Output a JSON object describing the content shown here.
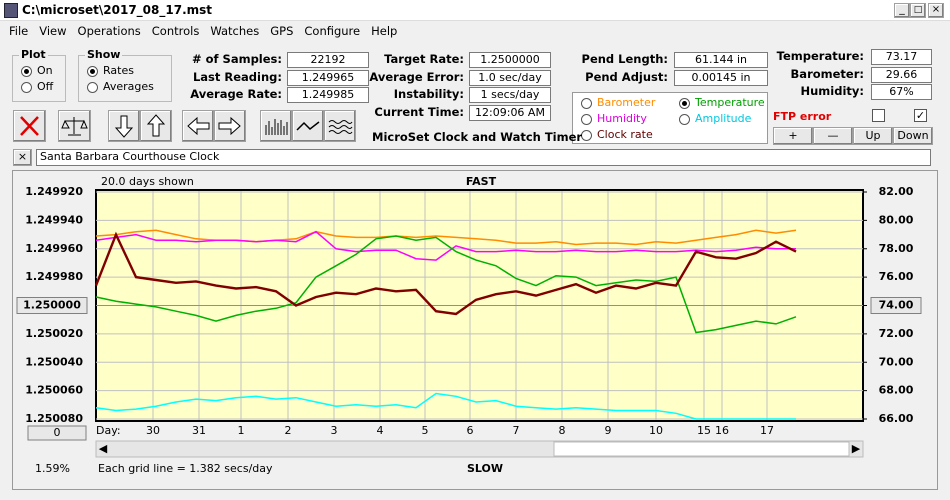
{
  "window": {
    "title": "C:\\microset\\2017_08_17.mst"
  },
  "menu": [
    "File",
    "View",
    "Operations",
    "Controls",
    "Watches",
    "GPS",
    "Configure",
    "Help"
  ],
  "plot_group": {
    "title": "Plot",
    "options": [
      "On",
      "Off"
    ],
    "selected": 0
  },
  "show_group": {
    "title": "Show",
    "options": [
      "Rates",
      "Averages"
    ],
    "selected": 0
  },
  "stats": [
    {
      "label": "# of Samples:",
      "value": "22192"
    },
    {
      "label": "Last Reading:",
      "value": "1.249965"
    },
    {
      "label": "Average Rate:",
      "value": "1.249985"
    }
  ],
  "rates": [
    {
      "label": "Target Rate:",
      "value": "1.2500000"
    },
    {
      "label": "Average Error:",
      "value": "1.0 sec/day"
    },
    {
      "label": "Instability:",
      "value": "1 secs/day"
    },
    {
      "label": "Current Time:",
      "value": "12:09:06 AM"
    }
  ],
  "pendulum": [
    {
      "label": "Pend Length:",
      "value": "61.144 in"
    },
    {
      "label": "Pend Adjust:",
      "value": "0.00145 in"
    }
  ],
  "sensor_select": {
    "options": [
      {
        "label": "Barometer",
        "color": "#ff8c00"
      },
      {
        "label": "Temperature",
        "color": "#00a000"
      },
      {
        "label": "Humidity",
        "color": "#e000e0"
      },
      {
        "label": "Amplitude",
        "color": "#00c8e0"
      },
      {
        "label": "Clock rate",
        "color": "#600000"
      }
    ],
    "selected": 1
  },
  "environment": [
    {
      "label": "Temperature:",
      "value": "73.17"
    },
    {
      "label": "Barometer:",
      "value": "29.66"
    },
    {
      "label": "Humidity:",
      "value": "67%"
    }
  ],
  "ftp_error": "FTP error",
  "buttons": [
    "+",
    "—",
    "Up",
    "Down"
  ],
  "app_name": "MicroSet Clock and Watch Timer",
  "clock_name": "Santa Barbara Courthouse Clock",
  "chart": {
    "days_shown": "20.0 days shown",
    "top_label": "FAST",
    "bottom_label": "SLOW",
    "grid_note": "Each grid line = 1.382 secs/day",
    "percent": "1.59%",
    "offset_button": "0",
    "day_prefix": "Day:",
    "days": [
      "30",
      "31",
      "1",
      "2",
      "3",
      "4",
      "5",
      "6",
      "7",
      "8",
      "9",
      "10",
      "15",
      "16",
      "17"
    ],
    "ylim": [
      1.24992,
      1.25008
    ],
    "yticks": [
      {
        "value": 1.24992,
        "label": "1.249920"
      },
      {
        "value": 1.24994,
        "label": "1.249940"
      },
      {
        "value": 1.24996,
        "label": "1.249960"
      },
      {
        "value": 1.24998,
        "label": "1.249980"
      },
      {
        "value": 1.25,
        "label": "1.250000"
      },
      {
        "value": 1.25002,
        "label": "1.250020"
      },
      {
        "value": 1.25004,
        "label": "1.250040"
      },
      {
        "value": 1.25006,
        "label": "1.250060"
      },
      {
        "value": 1.25008,
        "label": "1.250080"
      }
    ],
    "y2lim": [
      82,
      66
    ],
    "y2ticks": [
      {
        "value": 82,
        "label": "82.00"
      },
      {
        "value": 80,
        "label": "80.00"
      },
      {
        "value": 78,
        "label": "78.00"
      },
      {
        "value": 76,
        "label": "76.00"
      },
      {
        "value": 74,
        "label": "74.00"
      },
      {
        "value": 72,
        "label": "72.00"
      },
      {
        "value": 70,
        "label": "70.00"
      },
      {
        "value": 68,
        "label": "68.00"
      },
      {
        "value": 66,
        "label": "66.00"
      }
    ],
    "series": [
      {
        "name": "Barometer",
        "color": "#ff8c00",
        "axis": "y2",
        "values": [
          78.9,
          79.0,
          79.2,
          79.3,
          79.0,
          78.7,
          78.6,
          78.6,
          78.5,
          78.6,
          78.7,
          79.2,
          78.9,
          78.8,
          78.8,
          78.9,
          78.8,
          78.9,
          78.8,
          78.7,
          78.6,
          78.4,
          78.4,
          78.5,
          78.3,
          78.4,
          78.4,
          78.3,
          78.5,
          78.4,
          78.6,
          78.8,
          79.0,
          79.3,
          79.1,
          79.3
        ]
      },
      {
        "name": "Humidity",
        "color": "#ff00ff",
        "axis": "y2",
        "values": [
          78.6,
          78.8,
          79.0,
          78.6,
          78.6,
          78.5,
          78.6,
          78.6,
          78.5,
          78.6,
          78.5,
          79.2,
          78.0,
          77.8,
          77.9,
          77.9,
          77.3,
          77.2,
          78.2,
          77.8,
          77.8,
          77.9,
          77.8,
          77.8,
          77.9,
          77.8,
          77.8,
          77.9,
          77.8,
          77.8,
          77.9,
          77.8,
          77.9,
          78.1,
          78.0,
          78.0
        ]
      },
      {
        "name": "Temperature",
        "color": "#00b000",
        "axis": "y2",
        "values": [
          74.6,
          74.3,
          74.1,
          73.9,
          73.6,
          73.3,
          72.9,
          73.3,
          73.6,
          73.8,
          74.2,
          76.0,
          76.8,
          77.6,
          78.7,
          78.9,
          78.6,
          78.8,
          77.8,
          77.2,
          76.8,
          75.9,
          75.4,
          76.1,
          76.0,
          75.4,
          75.6,
          75.8,
          75.7,
          76.0,
          72.1,
          72.3,
          72.6,
          72.9,
          72.7,
          73.2
        ]
      },
      {
        "name": "Amplitude",
        "color": "#00ffff",
        "axis": "y2",
        "values": [
          66.8,
          66.6,
          66.7,
          66.9,
          67.2,
          67.4,
          67.3,
          67.5,
          67.6,
          67.4,
          67.5,
          67.2,
          66.9,
          67.0,
          66.9,
          67.0,
          66.8,
          67.8,
          67.6,
          67.2,
          67.3,
          66.9,
          66.8,
          66.7,
          66.8,
          66.7,
          66.6,
          66.6,
          66.6,
          66.4,
          66.0,
          66.0,
          66.0,
          66.0,
          66.0,
          66.0
        ]
      },
      {
        "name": "Clock rate",
        "color": "#800000",
        "axis": "y",
        "values": [
          1.249986,
          1.24995,
          1.24998,
          1.249982,
          1.249984,
          1.249983,
          1.249986,
          1.249988,
          1.249987,
          1.24999,
          1.25,
          1.249994,
          1.249991,
          1.249992,
          1.249988,
          1.24999,
          1.249989,
          1.250004,
          1.250006,
          1.249996,
          1.249992,
          1.24999,
          1.249993,
          1.249989,
          1.249985,
          1.249991,
          1.249986,
          1.249988,
          1.249984,
          1.249986,
          1.249962,
          1.249966,
          1.249967,
          1.249963,
          1.249955,
          1.249962
        ]
      }
    ]
  }
}
